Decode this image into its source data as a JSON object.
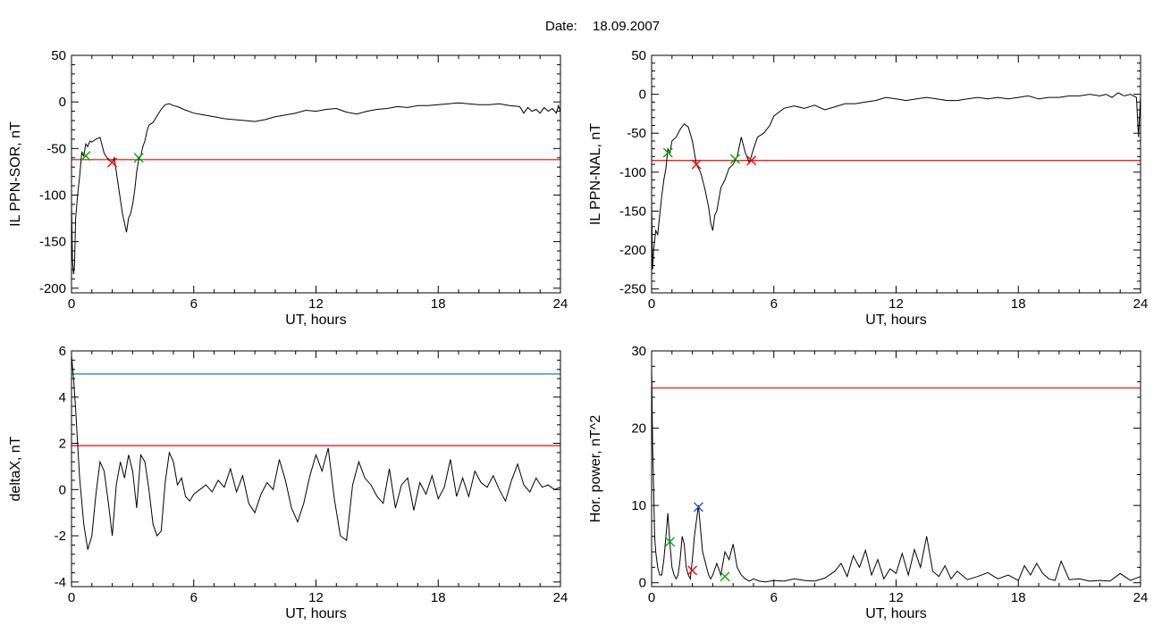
{
  "header": {
    "date_label": "Date:",
    "date_value": "18.09.2007"
  },
  "chart_data": [
    {
      "type": "line",
      "id": "il-ppn-sor",
      "xlabel": "UT, hours",
      "ylabel": "IL PPN-SOR, nT",
      "xlim": [
        0,
        24
      ],
      "ylim": [
        -205,
        50
      ],
      "xticks": [
        0,
        6,
        12,
        18,
        24
      ],
      "yticks": [
        -200,
        -150,
        -100,
        -50,
        0,
        50
      ],
      "grid": false,
      "threshold": {
        "y": -62,
        "color": "#ff0000"
      },
      "series": [
        {
          "color": "#000000",
          "x": [
            0,
            0.05,
            0.1,
            0.15,
            0.2,
            0.3,
            0.4,
            0.5,
            0.6,
            0.7,
            0.8,
            0.9,
            1.0,
            1.2,
            1.4,
            1.6,
            1.8,
            2.0,
            2.1,
            2.2,
            2.3,
            2.4,
            2.5,
            2.6,
            2.7,
            2.8,
            2.9,
            3.0,
            3.1,
            3.2,
            3.3,
            3.4,
            3.5,
            3.6,
            3.7,
            3.8,
            4.0,
            4.2,
            4.4,
            4.6,
            4.8,
            5.0,
            5.2,
            5.5,
            6.0,
            6.5,
            7.0,
            7.5,
            8.0,
            8.5,
            9.0,
            9.5,
            10.0,
            10.5,
            11.0,
            11.5,
            12.0,
            12.5,
            13.0,
            13.5,
            14.0,
            14.5,
            15.0,
            15.5,
            16.0,
            16.5,
            17.0,
            17.5,
            18.0,
            18.5,
            19.0,
            19.5,
            20.0,
            20.5,
            21.0,
            21.5,
            22.0,
            22.2,
            22.4,
            22.6,
            22.8,
            23.0,
            23.2,
            23.4,
            23.6,
            23.8,
            23.9,
            24.0
          ],
          "y": [
            -110,
            -170,
            -185,
            -175,
            -125,
            -100,
            -80,
            -55,
            -58,
            -45,
            -48,
            -42,
            -43,
            -40,
            -38,
            -55,
            -62,
            -65,
            -60,
            -75,
            -90,
            -105,
            -120,
            -130,
            -140,
            -125,
            -120,
            -110,
            -95,
            -75,
            -62,
            -58,
            -48,
            -42,
            -32,
            -25,
            -22,
            -15,
            -8,
            -3,
            -2,
            -4,
            -5,
            -8,
            -12,
            -14,
            -16,
            -18,
            -19,
            -20,
            -21,
            -19,
            -16,
            -14,
            -12,
            -9,
            -10,
            -8,
            -7,
            -11,
            -13,
            -10,
            -8,
            -7,
            -5,
            -6,
            -4,
            -4,
            -3,
            -2,
            -1,
            -2,
            -3,
            -3,
            -2,
            -4,
            -5,
            -12,
            -6,
            -10,
            -8,
            -12,
            -6,
            -10,
            -7,
            -12,
            -4,
            -10
          ]
        }
      ],
      "markers": [
        {
          "x": 0.7,
          "y": -58,
          "color": "#00aa00"
        },
        {
          "x": 2.0,
          "y": -65,
          "color": "#ff0000"
        },
        {
          "x": 3.3,
          "y": -60,
          "color": "#00aa00"
        }
      ]
    },
    {
      "type": "line",
      "id": "il-ppn-nal",
      "xlabel": "UT, hours",
      "ylabel": "IL PPN-NAL, nT",
      "xlim": [
        0,
        24
      ],
      "ylim": [
        -255,
        50
      ],
      "xticks": [
        0,
        6,
        12,
        18,
        24
      ],
      "yticks": [
        -250,
        -200,
        -150,
        -100,
        -50,
        0,
        50
      ],
      "grid": false,
      "threshold": {
        "y": -85,
        "color": "#ff0000"
      },
      "series": [
        {
          "color": "#000000",
          "x": [
            0,
            0.05,
            0.1,
            0.2,
            0.3,
            0.4,
            0.5,
            0.6,
            0.7,
            0.8,
            0.9,
            1.0,
            1.2,
            1.4,
            1.6,
            1.8,
            2.0,
            2.2,
            2.4,
            2.6,
            2.8,
            2.9,
            3.0,
            3.1,
            3.2,
            3.4,
            3.6,
            3.8,
            4.0,
            4.2,
            4.4,
            4.6,
            4.8,
            5.0,
            5.2,
            5.5,
            5.8,
            6.0,
            6.5,
            7.0,
            7.5,
            8.0,
            8.5,
            9.0,
            9.5,
            10.0,
            10.5,
            11.0,
            11.5,
            12.0,
            12.5,
            13.0,
            13.5,
            14.0,
            14.5,
            15.0,
            15.5,
            16.0,
            16.5,
            17.0,
            17.5,
            18.0,
            18.5,
            19.0,
            19.5,
            20.0,
            20.5,
            21.0,
            21.5,
            22.0,
            22.3,
            22.6,
            22.9,
            23.2,
            23.5,
            23.8,
            23.9,
            24.0
          ],
          "y": [
            -140,
            -225,
            -200,
            -175,
            -180,
            -155,
            -130,
            -110,
            -95,
            -70,
            -75,
            -60,
            -55,
            -45,
            -38,
            -42,
            -60,
            -90,
            -100,
            -120,
            -145,
            -165,
            -175,
            -155,
            -150,
            -120,
            -110,
            -95,
            -90,
            -80,
            -55,
            -75,
            -88,
            -70,
            -55,
            -50,
            -40,
            -28,
            -18,
            -15,
            -18,
            -14,
            -20,
            -16,
            -12,
            -12,
            -10,
            -8,
            -4,
            -6,
            -8,
            -6,
            -4,
            -6,
            -8,
            -8,
            -6,
            -4,
            -6,
            -4,
            -6,
            -4,
            -2,
            -6,
            -4,
            -4,
            -2,
            -2,
            0,
            -2,
            0,
            -4,
            2,
            -2,
            0,
            -4,
            -55,
            -2
          ]
        }
      ],
      "markers": [
        {
          "x": 0.8,
          "y": -75,
          "color": "#00aa00"
        },
        {
          "x": 2.2,
          "y": -90,
          "color": "#ff0000"
        },
        {
          "x": 4.1,
          "y": -83,
          "color": "#00aa00"
        },
        {
          "x": 4.9,
          "y": -85,
          "color": "#ff0000"
        }
      ]
    },
    {
      "type": "line",
      "id": "deltax",
      "xlabel": "UT, hours",
      "ylabel": "deltaX, nT",
      "xlim": [
        0,
        24
      ],
      "ylim": [
        -4.2,
        6
      ],
      "xticks": [
        0,
        6,
        12,
        18,
        24
      ],
      "yticks": [
        -4,
        -2,
        0,
        2,
        4,
        6
      ],
      "grid": false,
      "thresholds": [
        {
          "y": 5.0,
          "color": "#1a7fa6"
        },
        {
          "y": 1.9,
          "color": "#ff0000"
        }
      ],
      "series": [
        {
          "color": "#000000",
          "x": [
            0,
            0.1,
            0.2,
            0.3,
            0.4,
            0.6,
            0.8,
            1.0,
            1.2,
            1.4,
            1.6,
            1.8,
            2.0,
            2.2,
            2.4,
            2.6,
            2.8,
            3.0,
            3.2,
            3.4,
            3.6,
            3.8,
            4.0,
            4.2,
            4.4,
            4.6,
            4.8,
            5.0,
            5.2,
            5.4,
            5.6,
            5.8,
            6.0,
            6.3,
            6.6,
            6.9,
            7.2,
            7.5,
            7.8,
            8.1,
            8.4,
            8.7,
            9.0,
            9.3,
            9.6,
            9.9,
            10.2,
            10.5,
            10.8,
            11.1,
            11.4,
            11.7,
            12.0,
            12.3,
            12.6,
            12.9,
            13.2,
            13.5,
            13.8,
            14.1,
            14.4,
            14.7,
            15.0,
            15.3,
            15.6,
            15.9,
            16.2,
            16.5,
            16.8,
            17.1,
            17.4,
            17.7,
            18.0,
            18.3,
            18.6,
            18.9,
            19.2,
            19.5,
            19.8,
            20.1,
            20.4,
            20.7,
            21.0,
            21.3,
            21.6,
            21.9,
            22.2,
            22.5,
            22.8,
            23.1,
            23.4,
            23.7,
            24.0
          ],
          "y": [
            5.8,
            4.8,
            3.5,
            2.0,
            0.5,
            -1.5,
            -2.6,
            -2.0,
            -0.2,
            1.2,
            0.8,
            -0.5,
            -2.0,
            0.2,
            1.2,
            0.5,
            1.5,
            0.8,
            -0.8,
            1.5,
            1.2,
            0.0,
            -1.5,
            -2.0,
            -1.8,
            0.3,
            1.6,
            1.2,
            0.2,
            0.5,
            -0.3,
            -0.5,
            -0.2,
            0.0,
            0.2,
            -0.1,
            0.4,
            0.1,
            0.9,
            -0.1,
            0.6,
            -0.6,
            -1.0,
            -0.2,
            0.3,
            0.0,
            1.3,
            0.4,
            -0.8,
            -1.4,
            -0.6,
            0.6,
            1.5,
            0.8,
            1.8,
            -0.4,
            -2.0,
            -2.2,
            0.2,
            1.2,
            0.5,
            0.2,
            -0.3,
            -0.6,
            0.9,
            -0.8,
            0.2,
            0.5,
            -0.9,
            0.3,
            -0.2,
            0.6,
            -0.4,
            0.1,
            1.3,
            -0.3,
            0.5,
            -0.3,
            0.8,
            0.3,
            0.1,
            0.6,
            0.0,
            -0.5,
            0.4,
            1.1,
            0.2,
            -0.1,
            0.5,
            0.1,
            0.2,
            0.0,
            0.1
          ]
        }
      ]
    },
    {
      "type": "line",
      "id": "hor-power",
      "xlabel": "UT, hours",
      "ylabel": "Hor. power, nT^2",
      "xlim": [
        0,
        24
      ],
      "ylim": [
        -0.5,
        30
      ],
      "xticks": [
        0,
        6,
        12,
        18,
        24
      ],
      "yticks": [
        0,
        10,
        20,
        30
      ],
      "grid": false,
      "threshold": {
        "y": 25.2,
        "color": "#ff0000"
      },
      "series": [
        {
          "color": "#000000",
          "x": [
            0,
            0.05,
            0.1,
            0.15,
            0.2,
            0.3,
            0.4,
            0.5,
            0.6,
            0.7,
            0.8,
            0.9,
            1.0,
            1.1,
            1.2,
            1.3,
            1.4,
            1.5,
            1.6,
            1.7,
            1.8,
            1.9,
            2.0,
            2.1,
            2.2,
            2.3,
            2.4,
            2.5,
            2.6,
            2.7,
            2.8,
            2.9,
            3.0,
            3.2,
            3.4,
            3.6,
            3.8,
            4.0,
            4.2,
            4.4,
            4.6,
            4.8,
            5.0,
            5.3,
            5.6,
            6.0,
            6.5,
            7.0,
            7.5,
            8.0,
            8.5,
            9.0,
            9.3,
            9.6,
            9.9,
            10.2,
            10.5,
            10.8,
            11.1,
            11.4,
            11.7,
            12.0,
            12.3,
            12.6,
            12.9,
            13.2,
            13.5,
            13.8,
            14.1,
            14.4,
            14.7,
            15.0,
            15.5,
            16.0,
            16.5,
            17.0,
            17.5,
            18.0,
            18.3,
            18.6,
            18.9,
            19.2,
            19.5,
            19.8,
            20.1,
            20.5,
            21.0,
            21.5,
            22.0,
            22.5,
            23.0,
            23.5,
            24.0
          ],
          "y": [
            28,
            18,
            12,
            6,
            4,
            2,
            1,
            1,
            3,
            6,
            9,
            5,
            2,
            1,
            0.5,
            1,
            3,
            6,
            5,
            2,
            1,
            0.5,
            3,
            6,
            8,
            10,
            7,
            4,
            3,
            2,
            1,
            0.5,
            1,
            2.5,
            1,
            4,
            3,
            5,
            2,
            1,
            0.5,
            0.2,
            0.5,
            0.2,
            0.1,
            0.3,
            0.2,
            0.5,
            0.3,
            0.2,
            0.6,
            1.5,
            2.5,
            0.8,
            3.5,
            2.0,
            4.2,
            1.0,
            3.0,
            0.5,
            1.8,
            1.2,
            3.8,
            1.0,
            4.3,
            2.0,
            6.0,
            1.5,
            0.8,
            2.2,
            0.5,
            1.5,
            0.4,
            0.8,
            1.3,
            0.5,
            1.0,
            0.3,
            2.2,
            1.0,
            2.5,
            1.2,
            0.5,
            0.3,
            2.8,
            0.4,
            0.5,
            0.2,
            0.3,
            0.2,
            1.2,
            0.3,
            0.8
          ]
        }
      ],
      "markers": [
        {
          "x": 0.9,
          "y": 5.3,
          "color": "#00aa00"
        },
        {
          "x": 2.0,
          "y": 1.6,
          "color": "#ff0000"
        },
        {
          "x": 2.3,
          "y": 9.8,
          "color": "#2255cc"
        },
        {
          "x": 3.6,
          "y": 0.8,
          "color": "#00aa00"
        }
      ]
    }
  ]
}
